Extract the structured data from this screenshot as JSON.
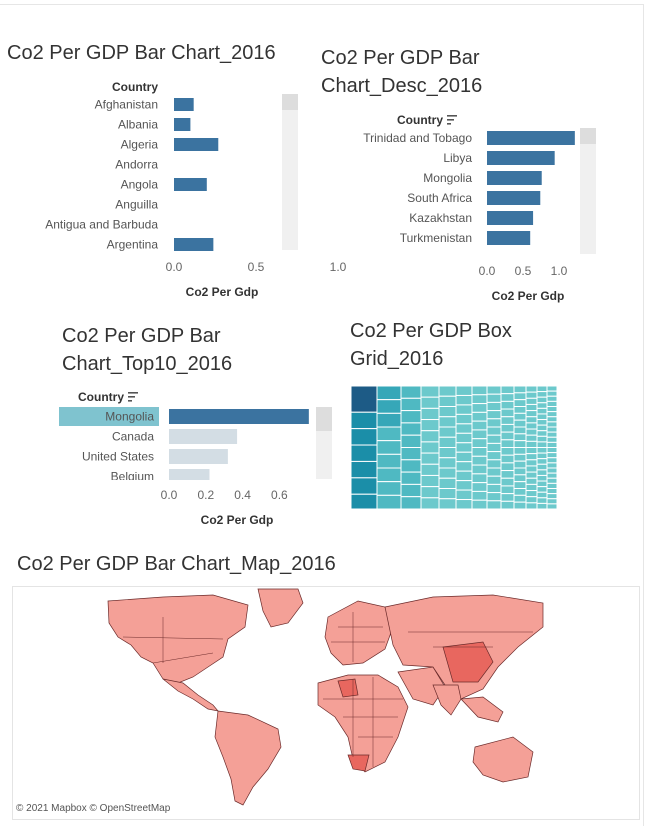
{
  "charts": {
    "bar2016": {
      "title": "Co2 Per GDP Bar Chart_2016",
      "header": "Country",
      "xlabel": "Co2 Per Gdp",
      "ticks": [
        "0.0",
        "0.5",
        "1.0"
      ]
    },
    "desc2016": {
      "title_line1": "Co2 Per GDP Bar",
      "title_line2": "Chart_Desc_2016",
      "header": "Country",
      "xlabel": "Co2 Per Gdp",
      "ticks": [
        "0.0",
        "0.5",
        "1.0"
      ]
    },
    "top10": {
      "title_line1": "Co2 Per GDP Bar",
      "title_line2": "Chart_Top10_2016",
      "header": "Country",
      "xlabel": "Co2 Per Gdp",
      "ticks": [
        "0.0",
        "0.2",
        "0.4",
        "0.6"
      ]
    },
    "grid": {
      "title_line1": "Co2 Per GDP Box",
      "title_line2": "Grid_2016"
    },
    "map": {
      "title": "Co2 Per GDP Bar Chart_Map_2016",
      "attribution": "© 2021 Mapbox  © OpenStreetMap"
    }
  },
  "colors": {
    "bar": "#3b73a0",
    "bar_dim": "#d3dde4",
    "highlight": "#7fc3cf",
    "scroll_track": "#f0f0f0",
    "scroll_thumb": "#dddddd",
    "treemap_dark": "#1d5b86",
    "treemap_mid": "#1b8ea8",
    "treemap_light": "#6cc9cc",
    "map_fill": "#f4a097",
    "map_dark": "#e8675f"
  },
  "chart_data": [
    {
      "type": "bar",
      "title": "Co2 Per GDP Bar Chart_2016",
      "categories": [
        "Afghanistan",
        "Albania",
        "Algeria",
        "Andorra",
        "Angola",
        "Anguilla",
        "Antigua and Barbuda",
        "Argentina"
      ],
      "values": [
        0.12,
        0.1,
        0.27,
        0,
        0.2,
        0,
        0,
        0.24
      ],
      "xlabel": "Co2 Per Gdp",
      "xlim": [
        -0.1,
        1.4
      ]
    },
    {
      "type": "bar",
      "title": "Co2 Per GDP Bar Chart_Desc_2016",
      "categories": [
        "Trinidad and Tobago",
        "Libya",
        "Mongolia",
        "South Africa",
        "Kazakhstan",
        "Turkmenistan"
      ],
      "values": [
        1.22,
        0.94,
        0.76,
        0.74,
        0.64,
        0.6
      ],
      "xlabel": "Co2 Per Gdp",
      "xlim": [
        -0.1,
        1.4
      ]
    },
    {
      "type": "bar",
      "title": "Co2 Per GDP Bar Chart_Top10_2016",
      "categories": [
        "Mongolia",
        "Canada",
        "United States",
        "Belgium"
      ],
      "values": [
        0.76,
        0.37,
        0.32,
        0.22
      ],
      "xlabel": "Co2 Per Gdp",
      "xlim": [
        -0.05,
        0.78
      ]
    }
  ]
}
